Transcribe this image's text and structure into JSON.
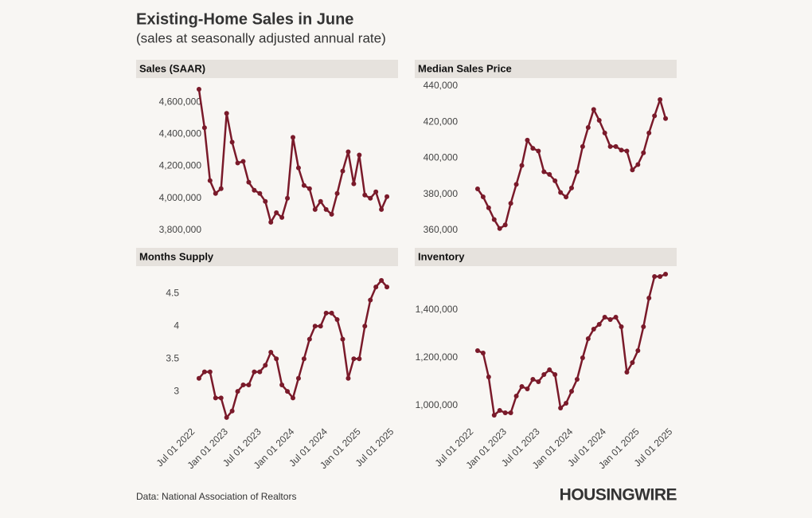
{
  "title": "Existing-Home Sales in June",
  "subtitle": "(sales at seasonally adjusted annual rate)",
  "source": "Data: National Association of Realtors",
  "logo": "HOUSINGWIRE",
  "chart_data": [
    {
      "type": "line",
      "title": "Sales (SAAR)",
      "color": "#7a1a2a",
      "x": [
        "2022-08-01",
        "2022-09-01",
        "2022-10-01",
        "2022-11-01",
        "2022-12-01",
        "2023-01-01",
        "2023-02-01",
        "2023-03-01",
        "2023-04-01",
        "2023-05-01",
        "2023-06-01",
        "2023-07-01",
        "2023-08-01",
        "2023-09-01",
        "2023-10-01",
        "2023-11-01",
        "2023-12-01",
        "2024-01-01",
        "2024-02-01",
        "2024-03-01",
        "2024-04-01",
        "2024-05-01",
        "2024-06-01",
        "2024-07-01",
        "2024-08-01",
        "2024-09-01",
        "2024-10-01",
        "2024-11-01",
        "2024-12-01",
        "2025-01-01",
        "2025-02-01",
        "2025-03-01",
        "2025-04-01",
        "2025-05-01",
        "2025-06-01"
      ],
      "values": [
        4680000,
        4440000,
        4110000,
        4030000,
        4060000,
        4530000,
        4350000,
        4220000,
        4230000,
        4100000,
        4050000,
        4030000,
        3980000,
        3850000,
        3910000,
        3880000,
        4000000,
        4380000,
        4190000,
        4080000,
        4060000,
        3930000,
        3980000,
        3930000,
        3900000,
        4030000,
        4170000,
        4290000,
        4090000,
        4270000,
        4020000,
        4000000,
        4040000,
        3930000,
        4010000
      ],
      "xlim": [
        "2022-07-01",
        "2025-07-01"
      ],
      "ylim": [
        3785000,
        4730000
      ],
      "yticks": [
        {
          "value": 3800000,
          "label": "3,800,000"
        },
        {
          "value": 4000000,
          "label": "4,000,000"
        },
        {
          "value": 4200000,
          "label": "4,200,000"
        },
        {
          "value": 4400000,
          "label": "4,400,000"
        },
        {
          "value": 4600000,
          "label": "4,600,000"
        }
      ]
    },
    {
      "type": "line",
      "title": "Median Sales Price",
      "color": "#7a1a2a",
      "x": [
        "2022-08-01",
        "2022-09-01",
        "2022-10-01",
        "2022-11-01",
        "2022-12-01",
        "2023-01-01",
        "2023-02-01",
        "2023-03-01",
        "2023-04-01",
        "2023-05-01",
        "2023-06-01",
        "2023-07-01",
        "2023-08-01",
        "2023-09-01",
        "2023-10-01",
        "2023-11-01",
        "2023-12-01",
        "2024-01-01",
        "2024-02-01",
        "2024-03-01",
        "2024-04-01",
        "2024-05-01",
        "2024-06-01",
        "2024-07-01",
        "2024-08-01",
        "2024-09-01",
        "2024-10-01",
        "2024-11-01",
        "2024-12-01",
        "2025-01-01",
        "2025-02-01",
        "2025-03-01",
        "2025-04-01",
        "2025-05-01",
        "2025-06-01"
      ],
      "values": [
        383000,
        378600,
        372500,
        366000,
        361000,
        363000,
        375000,
        385500,
        396000,
        410000,
        405500,
        404000,
        392500,
        391000,
        387500,
        381000,
        378500,
        383500,
        392500,
        406500,
        417000,
        427000,
        421000,
        414000,
        406500,
        406500,
        404500,
        404000,
        393500,
        396500,
        403000,
        414000,
        423500,
        432500,
        422000
      ],
      "xlim": [
        "2022-07-01",
        "2025-07-01"
      ],
      "ylim": [
        358700,
        442650
      ],
      "yticks": [
        {
          "value": 360000,
          "label": "360,000"
        },
        {
          "value": 380000,
          "label": "380,000"
        },
        {
          "value": 400000,
          "label": "400,000"
        },
        {
          "value": 420000,
          "label": "420,000"
        },
        {
          "value": 440000,
          "label": "440,000"
        }
      ]
    },
    {
      "type": "line",
      "title": "Months Supply",
      "color": "#7a1a2a",
      "x": [
        "2022-08-01",
        "2022-09-01",
        "2022-10-01",
        "2022-11-01",
        "2022-12-01",
        "2023-01-01",
        "2023-02-01",
        "2023-03-01",
        "2023-04-01",
        "2023-05-01",
        "2023-06-01",
        "2023-07-01",
        "2023-08-01",
        "2023-09-01",
        "2023-10-01",
        "2023-11-01",
        "2023-12-01",
        "2024-01-01",
        "2024-02-01",
        "2024-03-01",
        "2024-04-01",
        "2024-05-01",
        "2024-06-01",
        "2024-07-01",
        "2024-08-01",
        "2024-09-01",
        "2024-10-01",
        "2024-11-01",
        "2024-12-01",
        "2025-01-01",
        "2025-02-01",
        "2025-03-01",
        "2025-04-01",
        "2025-05-01",
        "2025-06-01"
      ],
      "values": [
        3.2,
        3.3,
        3.3,
        2.9,
        2.9,
        2.6,
        2.7,
        3.0,
        3.1,
        3.1,
        3.3,
        3.3,
        3.4,
        3.6,
        3.5,
        3.1,
        3.0,
        2.9,
        3.2,
        3.5,
        3.8,
        4.0,
        4.0,
        4.2,
        4.2,
        4.1,
        3.8,
        3.2,
        3.5,
        3.5,
        4.0,
        4.4,
        4.6,
        4.7,
        4.6
      ],
      "xlim": [
        "2022-07-01",
        "2025-07-01"
      ],
      "ylim": [
        2.55,
        4.87
      ],
      "yticks": [
        3,
        3.5,
        4,
        4.5
      ],
      "xticks": [
        {
          "value": "2022-07-01",
          "label": "Jul 01 2022"
        },
        {
          "value": "2023-01-01",
          "label": "Jan 01 2023"
        },
        {
          "value": "2023-07-01",
          "label": "Jul 01 2023"
        },
        {
          "value": "2024-01-01",
          "label": "Jan 01 2024"
        },
        {
          "value": "2024-07-01",
          "label": "Jul 01 2024"
        },
        {
          "value": "2025-01-01",
          "label": "Jan 01 2025"
        },
        {
          "value": "2025-07-01",
          "label": "Jul 01 2025"
        }
      ]
    },
    {
      "type": "line",
      "title": "Inventory",
      "color": "#7a1a2a",
      "x": [
        "2022-08-01",
        "2022-09-01",
        "2022-10-01",
        "2022-11-01",
        "2022-12-01",
        "2023-01-01",
        "2023-02-01",
        "2023-03-01",
        "2023-04-01",
        "2023-05-01",
        "2023-06-01",
        "2023-07-01",
        "2023-08-01",
        "2023-09-01",
        "2023-10-01",
        "2023-11-01",
        "2023-12-01",
        "2024-01-01",
        "2024-02-01",
        "2024-03-01",
        "2024-04-01",
        "2024-05-01",
        "2024-06-01",
        "2024-07-01",
        "2024-08-01",
        "2024-09-01",
        "2024-10-01",
        "2024-11-01",
        "2024-12-01",
        "2025-01-01",
        "2025-02-01",
        "2025-03-01",
        "2025-04-01",
        "2025-05-01",
        "2025-06-01"
      ],
      "values": [
        1230000,
        1220000,
        1120000,
        960000,
        980000,
        970000,
        970000,
        1040000,
        1080000,
        1070000,
        1110000,
        1100000,
        1130000,
        1150000,
        1130000,
        990000,
        1010000,
        1060000,
        1110000,
        1200000,
        1280000,
        1320000,
        1340000,
        1370000,
        1360000,
        1370000,
        1330000,
        1140000,
        1180000,
        1230000,
        1330000,
        1450000,
        1540000,
        1540000,
        1550000
      ],
      "xlim": [
        "2022-07-01",
        "2025-07-01"
      ],
      "ylim": [
        936700,
        1570000
      ],
      "yticks": [
        {
          "value": 1000000,
          "label": "1,000,000"
        },
        {
          "value": 1200000,
          "label": "1,200,000"
        },
        {
          "value": 1400000,
          "label": "1,400,000"
        }
      ],
      "xticks": [
        {
          "value": "2022-07-01",
          "label": "Jul 01 2022"
        },
        {
          "value": "2023-01-01",
          "label": "Jan 01 2023"
        },
        {
          "value": "2023-07-01",
          "label": "Jul 01 2023"
        },
        {
          "value": "2024-01-01",
          "label": "Jan 01 2024"
        },
        {
          "value": "2024-07-01",
          "label": "Jul 01 2024"
        },
        {
          "value": "2025-01-01",
          "label": "Jan 01 2025"
        },
        {
          "value": "2025-07-01",
          "label": "Jul 01 2025"
        }
      ]
    }
  ]
}
